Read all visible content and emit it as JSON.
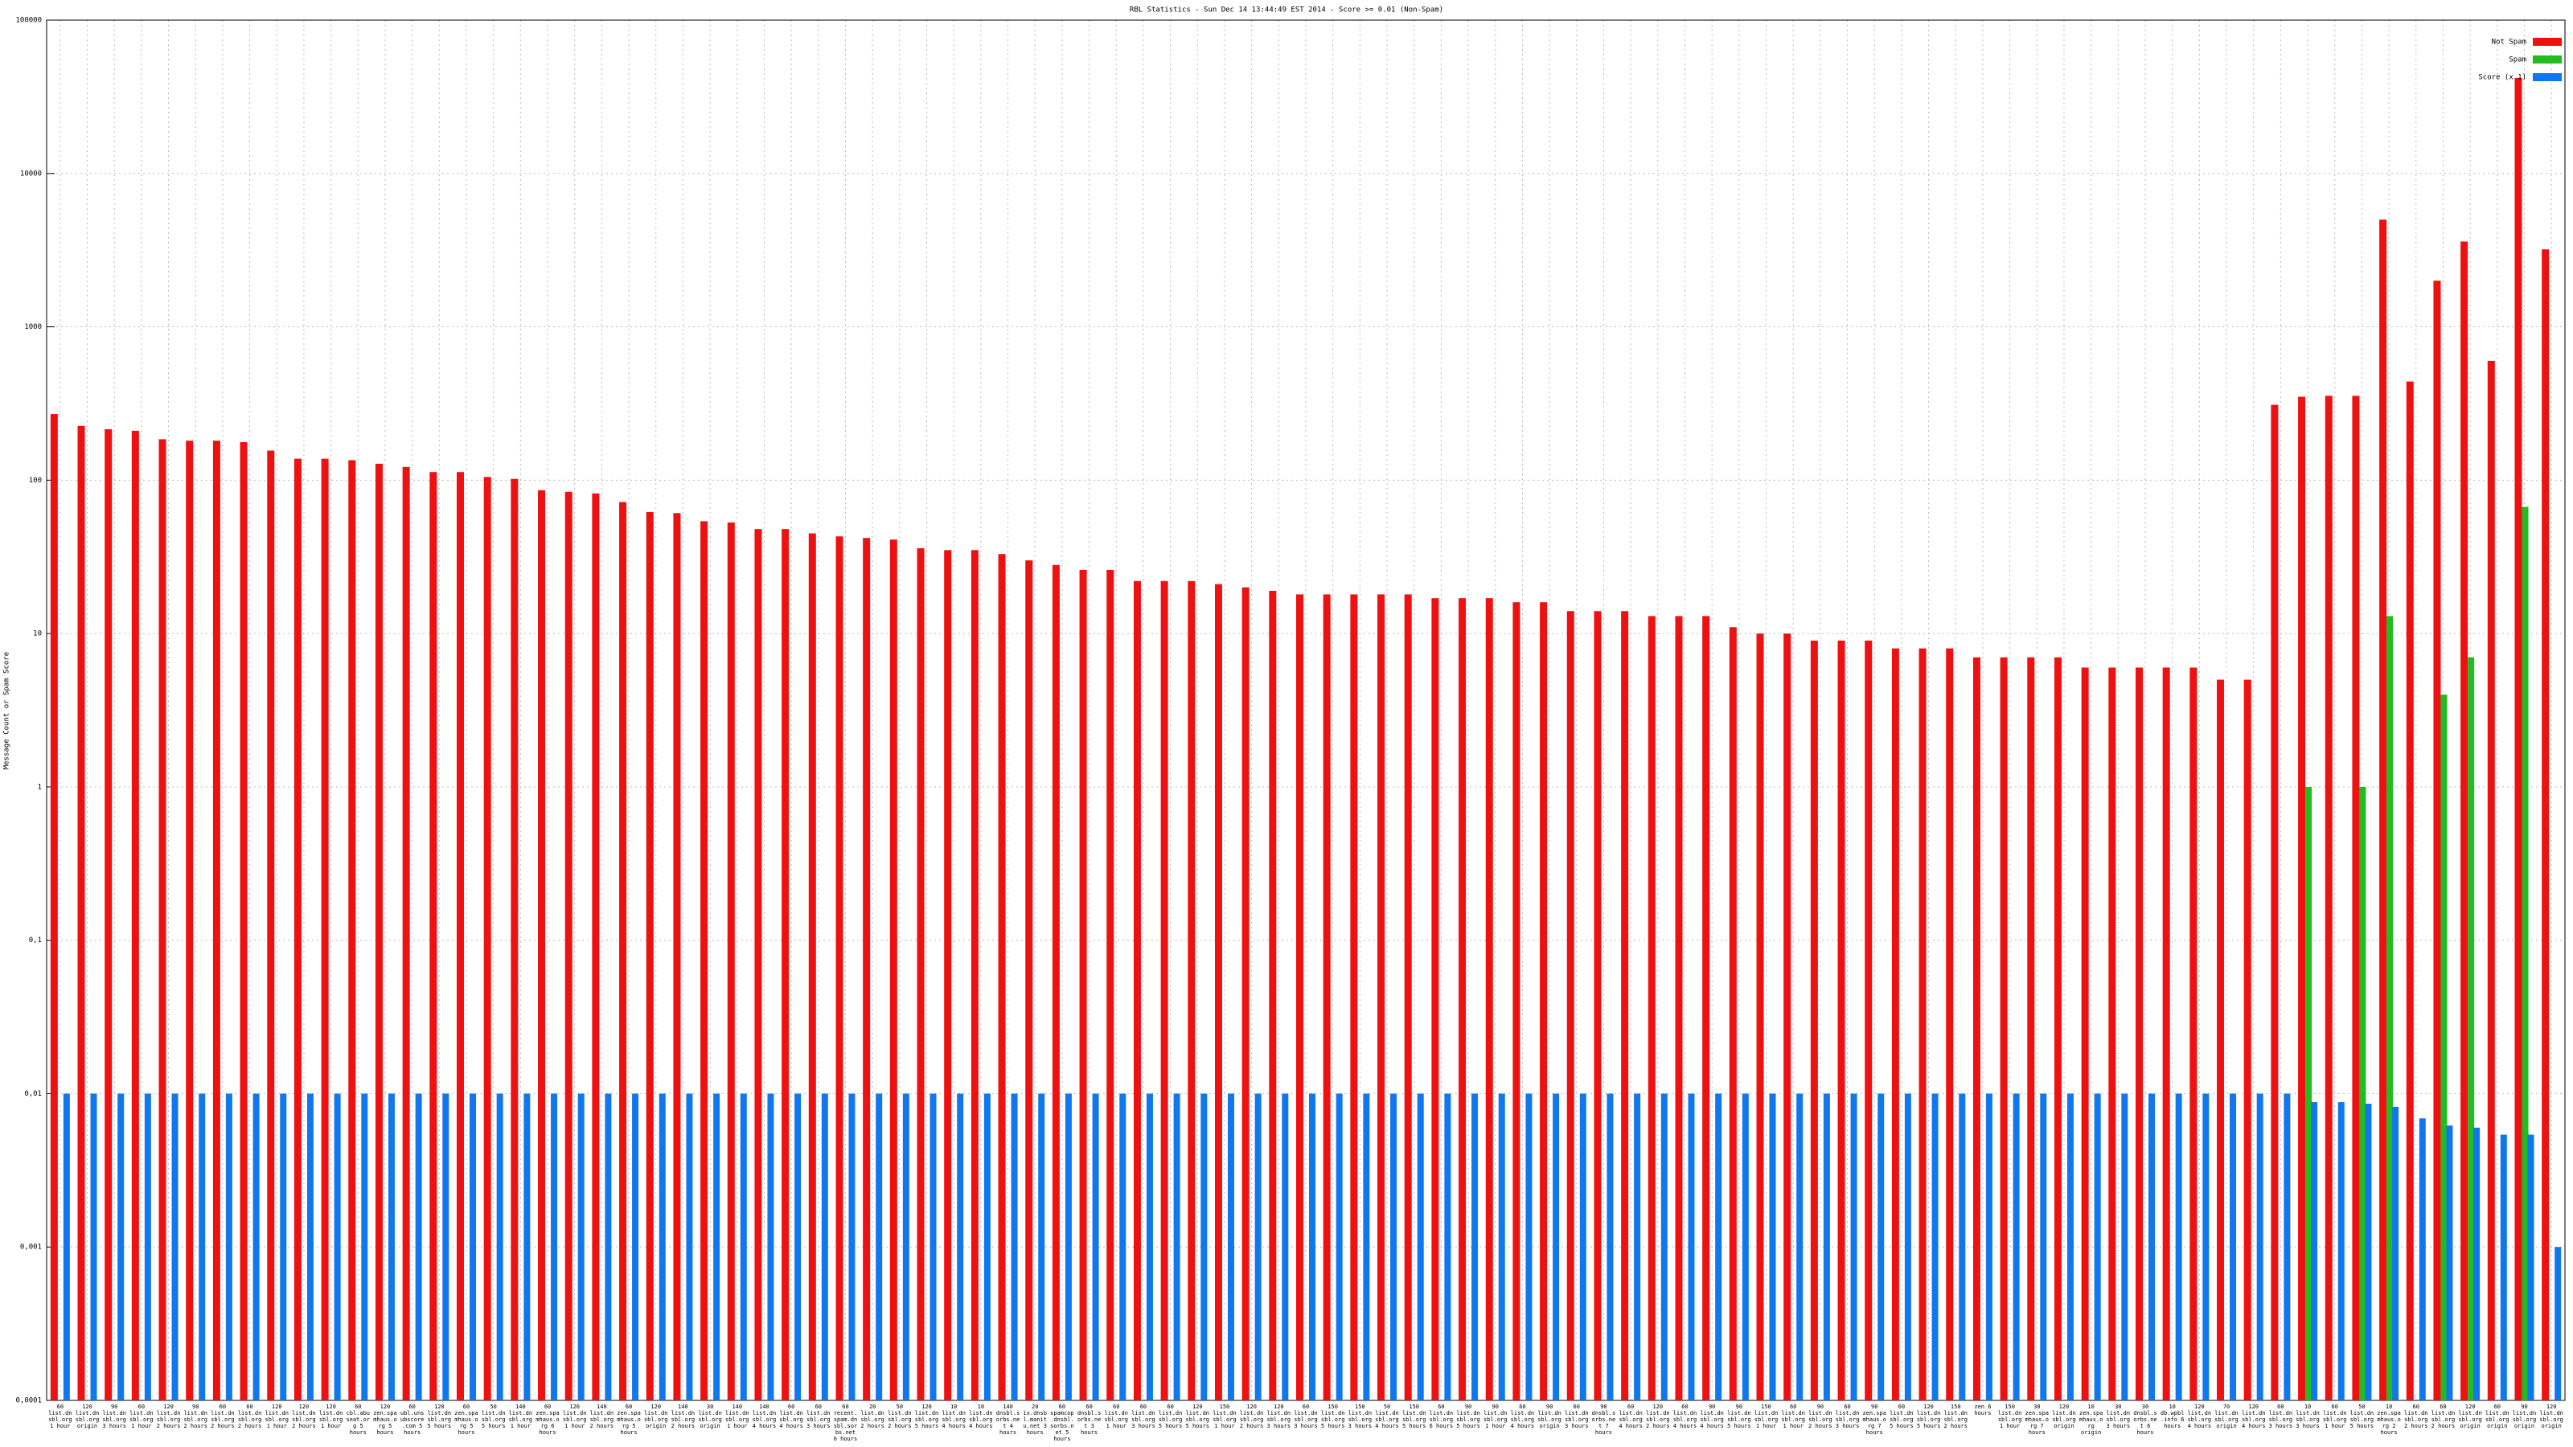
{
  "chart_data": {
    "type": "bar",
    "title": "RBL Statistics - Sun Dec 14 13:44:49 EST 2014 - Score >= 0.01 (Non-Spam)",
    "y_label": "Message Count or Spam Score",
    "log_scale": true,
    "grid": true,
    "legend_position": "top-right",
    "categories": [
      "60 list.dnsbl.org 1 hour",
      "120 list.dnsbl.org origin",
      "90 list.dnsbl.org 3 hours",
      "60 list.dnsbl.org 1 hour",
      "120 list.dnsbl.org 2 hours",
      "90 list.dnsbl.org 2 hours",
      "60 list.dnsbl.org 2 hours",
      "60 list.dnsbl.org 2 hours",
      "120 list.dnsbl.org 1 hour",
      "120 list.dnsbl.org 2 hours",
      "120 list.dnsbl.org 1 hour",
      "60 cbl.abuseat.org 5 hours",
      "120 zen.spamhaus.org 5 hours",
      "60 ubl.unsubscore.com 5 hours",
      "120 list.dnsbl.org 5 hours",
      "60 zen.spamhaus.org 5 hours",
      "50 list.dnsbl.org 5 hours",
      "140 list.dnsbl.org 1 hour",
      "60 zen.spamhaus.org 6 hours",
      "120 list.dnsbl.org 1 hour",
      "140 list.dnsbl.org 2 hours",
      "60 zen.spamhaus.org 5 hours",
      "120 list.dnsbl.org origin",
      "140 list.dnsbl.org 2 hours",
      "30 list.dnsbl.org origin",
      "140 list.dnsbl.org 1 hour",
      "140 list.dnsbl.org 4 hours",
      "60 list.dnsbl.org 4 hours",
      "60 list.dnsbl.org 3 hours",
      "60 recent.spam.dnsbl.sorbs.net 6 hours",
      "20 list.dnsbl.org 2 hours",
      "50 list.dnsbl.org 2 hours",
      "120 list.dnsbl.org 5 hours",
      "10 list.dnsbl.org 4 hours",
      "10 list.dnsbl.org 4 hours",
      "140 dnsbl.sorbs.net 4 hours",
      "20 ix.dnsbl.manitu.net 3 hours",
      "60 spamcop.dnsbl.sorbs.net 5 hours",
      "60 dnsbl.sorbs.net 3 hours",
      "60 list.dnsbl.org 1 hour",
      "60 list.dnsbl.org 3 hours",
      "60 list.dnsbl.org 5 hours",
      "120 list.dnsbl.org 5 hours",
      "150 list.dnsbl.org 1 hour",
      "120 list.dnsbl.org 2 hours",
      "120 list.dnsbl.org 3 hours",
      "60 list.dnsbl.org 3 hours",
      "150 list.dnsbl.org 5 hours",
      "150 list.dnsbl.org 3 hours",
      "50 list.dnsbl.org 4 hours",
      "150 list.dnsbl.org 5 hours",
      "60 list.dnsbl.org 6 hours",
      "90 list.dnsbl.org 5 hours",
      "90 list.dnsbl.org 1 hour",
      "60 list.dnsbl.org 4 hours",
      "90 list.dnsbl.org origin",
      "60 list.dnsbl.org 3 hours",
      "90 dnsbl.sorbs.net 7 hours",
      "60 list.dnsbl.org 4 hours",
      "120 list.dnsbl.org 2 hours",
      "60 list.dnsbl.org 4 hours",
      "90 list.dnsbl.org 4 hours",
      "90 list.dnsbl.org 5 hours",
      "150 list.dnsbl.org 1 hour",
      "60 list.dnsbl.org 1 hour",
      "90 list.dnsbl.org 2 hours",
      "60 list.dnsbl.org 3 hours",
      "90 zen.spamhaus.org 7 hours",
      "60 list.dnsbl.org 5 hours",
      "120 list.dnsbl.org 5 hours",
      "150 list.dnsbl.org 2 hours",
      "zen 6 hours",
      "150 list.dnsbl.org 1 hour",
      "30 zen.spamhaus.org 7 hours",
      "120 list.dnsbl.org origin",
      "10 zen.spamhaus.org origin",
      "30 list.dnsbl.org 3 hours",
      "30 dnsbl.sorbs.net 6 hours",
      "10 db.wpbl.info 6 hours",
      "120 list.dnsbl.org 4 hours",
      "70 list.dnsbl.org origin",
      "120 list.dnsbl.org 4 hours",
      "60 list.dnsbl.org 3 hours",
      "10 list.dnsbl.org 3 hours",
      "60 list.dnsbl.org 1 hour",
      "50 list.dnsbl.org 5 hours",
      "10 zen.spamhaus.org 2 hours",
      "60 list.dnsbl.org 2 hours",
      "60 list.dnsbl.org 2 hours",
      "120 list.dnsbl.org origin",
      "60 list.dnsbl.org origin",
      "90 list.dnsbl.org origin",
      "120 list.dnsbl.org origin"
    ],
    "series": [
      {
        "name": "Not Spam",
        "color": "#ee1111",
        "values": [
          270,
          226,
          215,
          210,
          185,
          181,
          181,
          177,
          156,
          138,
          138,
          135,
          128,
          122,
          113,
          113,
          105,
          102,
          86,
          84,
          82,
          72,
          62,
          61,
          54,
          53,
          48,
          48,
          45,
          43,
          42,
          41,
          36,
          35,
          35,
          33,
          30,
          28,
          26,
          26,
          22,
          22,
          22,
          21,
          20,
          19,
          18,
          18,
          18,
          18,
          18,
          17,
          17,
          17,
          16,
          16,
          14,
          14,
          14,
          13,
          13,
          13,
          11,
          10,
          10,
          9,
          9,
          9,
          8,
          8,
          8,
          7,
          7,
          7,
          7,
          6,
          6,
          6,
          6,
          6,
          5,
          5,
          310,
          350,
          355,
          355,
          5000,
          440,
          2000,
          3600,
          600,
          42000,
          3200
        ]
      },
      {
        "name": "Spam",
        "color": "#22bb22",
        "values": [
          null,
          null,
          null,
          null,
          null,
          null,
          null,
          null,
          null,
          null,
          null,
          null,
          null,
          null,
          null,
          null,
          null,
          null,
          null,
          null,
          null,
          null,
          null,
          null,
          null,
          null,
          null,
          null,
          null,
          null,
          null,
          null,
          null,
          null,
          null,
          null,
          null,
          null,
          null,
          null,
          null,
          null,
          null,
          null,
          null,
          null,
          null,
          null,
          null,
          null,
          null,
          null,
          null,
          null,
          null,
          null,
          null,
          null,
          null,
          null,
          null,
          null,
          null,
          null,
          null,
          null,
          null,
          null,
          null,
          null,
          null,
          null,
          null,
          null,
          null,
          null,
          null,
          null,
          null,
          null,
          null,
          null,
          null,
          1,
          null,
          1,
          13,
          null,
          4,
          7,
          null,
          67,
          null
        ]
      },
      {
        "name": "Score (x 1)",
        "color": "#1177ee",
        "values": [
          0.01,
          0.01,
          0.01,
          0.01,
          0.01,
          0.01,
          0.01,
          0.01,
          0.01,
          0.01,
          0.01,
          0.01,
          0.01,
          0.01,
          0.01,
          0.01,
          0.01,
          0.01,
          0.01,
          0.01,
          0.01,
          0.01,
          0.01,
          0.01,
          0.01,
          0.01,
          0.01,
          0.01,
          0.01,
          0.01,
          0.01,
          0.01,
          0.01,
          0.01,
          0.01,
          0.01,
          0.01,
          0.01,
          0.01,
          0.01,
          0.01,
          0.01,
          0.01,
          0.01,
          0.01,
          0.01,
          0.01,
          0.01,
          0.01,
          0.01,
          0.01,
          0.01,
          0.01,
          0.01,
          0.01,
          0.01,
          0.01,
          0.01,
          0.01,
          0.01,
          0.01,
          0.01,
          0.01,
          0.01,
          0.01,
          0.01,
          0.01,
          0.01,
          0.01,
          0.01,
          0.01,
          0.01,
          0.01,
          0.01,
          0.01,
          0.01,
          0.01,
          0.01,
          0.01,
          0.01,
          0.01,
          0.01,
          0.01,
          0.0088,
          0.0088,
          0.0086,
          0.0082,
          0.0069,
          0.0062,
          0.006,
          0.0054,
          0.0054,
          0.001
        ]
      }
    ],
    "ylim": [
      0.0001,
      100000
    ],
    "yticks": [
      {
        "value": 0.0001,
        "label": "0,0001"
      },
      {
        "value": 0.001,
        "label": "0,001"
      },
      {
        "value": 0.01,
        "label": "0,01"
      },
      {
        "value": 0.1,
        "label": "0,1"
      },
      1,
      10,
      100,
      1000,
      10000,
      100000
    ]
  }
}
